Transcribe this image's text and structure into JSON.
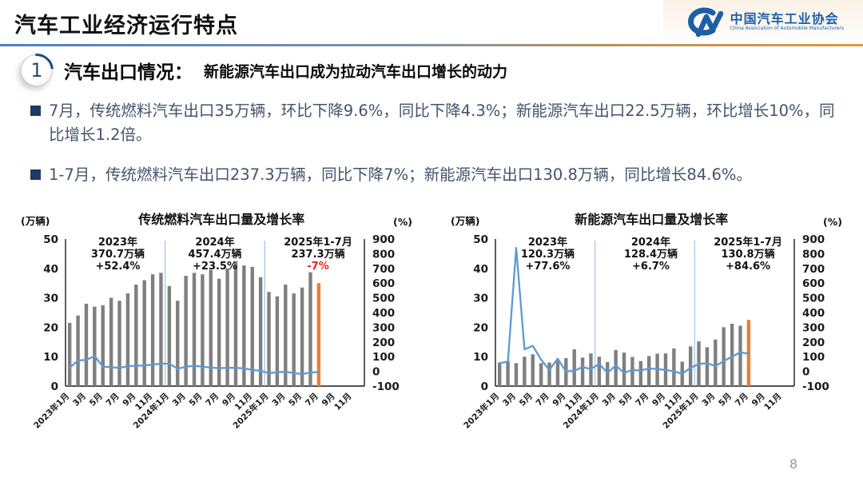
{
  "header": {
    "title": "汽车工业经济运行特点",
    "logo": {
      "org_cn": "中国汽车工业协会",
      "org_en": "China Association of Automobile Manufacturers"
    }
  },
  "section": {
    "number": "1",
    "heading": "汽车出口情况：",
    "subheading": "新能源汽车出口成为拉动汽车出口增长的动力"
  },
  "bullets": [
    "7月，传统燃料汽车出口35万辆，环比下降9.6%，同比下降4.3%；新能源汽车出口22.5万辆，环比增长10%，同比增长1.2倍。",
    "1-7月，传统燃料汽车出口237.3万辆，同比下降7%；新能源汽车出口130.8万辆，同比增长84.6%。"
  ],
  "page_number": "8",
  "colors": {
    "bar_gray": "#7f7f7f",
    "bar_highlight_orange": "#ED7D31",
    "line_blue": "#5B9BD5",
    "separator_blue": "#9DC3E6",
    "bullet_navy": "#1F3864",
    "body_text_blue": "#44546A",
    "logo_blue": "#1C5FA8",
    "negative_red": "#E4251B",
    "axis_black": "#1a1a1a"
  },
  "chart_data": [
    {
      "type": "bar",
      "subtype": "combo-bar-line",
      "title": "传统燃料汽车出口量及增长率",
      "ylabel_left": "(万辆)",
      "ylabel_right": "(%)",
      "left_ylim": [
        0,
        50
      ],
      "right_ylim": [
        -100,
        900
      ],
      "left_axis_ticks": [
        0,
        10,
        20,
        30,
        40,
        50
      ],
      "right_axis_ticks": [
        900,
        800,
        700,
        600,
        500,
        400,
        300,
        200,
        100,
        0,
        -100
      ],
      "total_slots": 36,
      "x_tick_labels": [
        "2023年1月",
        "3月",
        "5月",
        "7月",
        "9月",
        "11月",
        "2024年1月",
        "3月",
        "5月",
        "7月",
        "9月",
        "11月",
        "2025年1月",
        "3月",
        "5月",
        "7月",
        "9月",
        "11月"
      ],
      "separators_after_index": [
        11,
        23
      ],
      "bar_series": {
        "name": "出口量(万辆)",
        "values": [
          21.5,
          24,
          28,
          27,
          27.5,
          30,
          29,
          31.5,
          34.5,
          36,
          38,
          38.5,
          34,
          29,
          37.5,
          38.5,
          38,
          39.5,
          36.5,
          40,
          42.5,
          41,
          40.5,
          37,
          32,
          30.5,
          34.5,
          31.5,
          33.5,
          38.7,
          35
        ],
        "highlight_last": true
      },
      "line_series": {
        "name": "增长率(%)",
        "values": [
          24,
          74,
          78,
          104,
          32,
          28,
          24,
          36,
          38,
          40,
          46,
          52,
          52,
          18,
          32,
          38,
          32,
          26,
          22,
          24,
          24,
          20,
          10,
          4,
          -12,
          -6,
          -2,
          -12,
          -18,
          -8,
          -4
        ]
      },
      "annotations": [
        {
          "x_frac": 0.175,
          "lines": [
            "2023年",
            "370.7万辆",
            "+52.4%"
          ],
          "line_colors": [
            null,
            null,
            null
          ]
        },
        {
          "x_frac": 0.5,
          "lines": [
            "2024年",
            "457.4万辆",
            "+23.5%"
          ],
          "line_colors": [
            null,
            null,
            null
          ]
        },
        {
          "x_frac": 0.845,
          "lines": [
            "2025年1-7月",
            "237.3万辆",
            "-7%"
          ],
          "line_colors": [
            null,
            null,
            "#E4251B"
          ]
        }
      ]
    },
    {
      "type": "bar",
      "subtype": "combo-bar-line",
      "title": "新能源汽车出口量及增长率",
      "ylabel_left": "(万辆)",
      "ylabel_right": "(%)",
      "left_ylim": [
        0,
        50
      ],
      "right_ylim": [
        -100,
        900
      ],
      "left_axis_ticks": [
        0,
        10,
        20,
        30,
        40,
        50
      ],
      "right_axis_ticks": [
        900,
        800,
        700,
        600,
        500,
        400,
        300,
        200,
        100,
        0,
        -100
      ],
      "total_slots": 36,
      "x_tick_labels": [
        "2023年1月",
        "3月",
        "5月",
        "7月",
        "9月",
        "11月",
        "2024年1月",
        "3月",
        "5月",
        "7月",
        "9月",
        "11月",
        "2025年1月",
        "3月",
        "5月",
        "7月",
        "9月",
        "11月"
      ],
      "separators_after_index": [
        11,
        23
      ],
      "bar_series": {
        "name": "出口量(万辆)",
        "values": [
          8,
          8.5,
          7.8,
          10,
          10.8,
          7.8,
          8,
          9,
          9.5,
          12.5,
          9.7,
          11.1,
          10,
          8.2,
          12.3,
          11.4,
          9.9,
          8.5,
          10.2,
          11,
          11.1,
          12.8,
          8.3,
          13.5,
          15.2,
          13.2,
          15.8,
          20,
          21.2,
          20.5,
          22.5
        ],
        "highlight_last": true
      },
      "line_series": {
        "name": "增长率(%)",
        "values": [
          56,
          66,
          840,
          150,
          174,
          80,
          10,
          86,
          0,
          4,
          30,
          16,
          50,
          -10,
          40,
          -10,
          10,
          6,
          20,
          16,
          10,
          0,
          -16,
          24,
          50,
          56,
          36,
          70,
          100,
          130,
          120
        ]
      },
      "annotations": [
        {
          "x_frac": 0.175,
          "lines": [
            "2023年",
            "120.3万辆",
            "+77.6%"
          ],
          "line_colors": [
            null,
            null,
            null
          ]
        },
        {
          "x_frac": 0.52,
          "lines": [
            "2024年",
            "128.4万辆",
            "+6.7%"
          ],
          "line_colors": [
            null,
            null,
            null
          ]
        },
        {
          "x_frac": 0.845,
          "lines": [
            "2025年1-7月",
            "130.8万辆",
            "+84.6%"
          ],
          "line_colors": [
            null,
            null,
            null
          ]
        }
      ]
    }
  ]
}
